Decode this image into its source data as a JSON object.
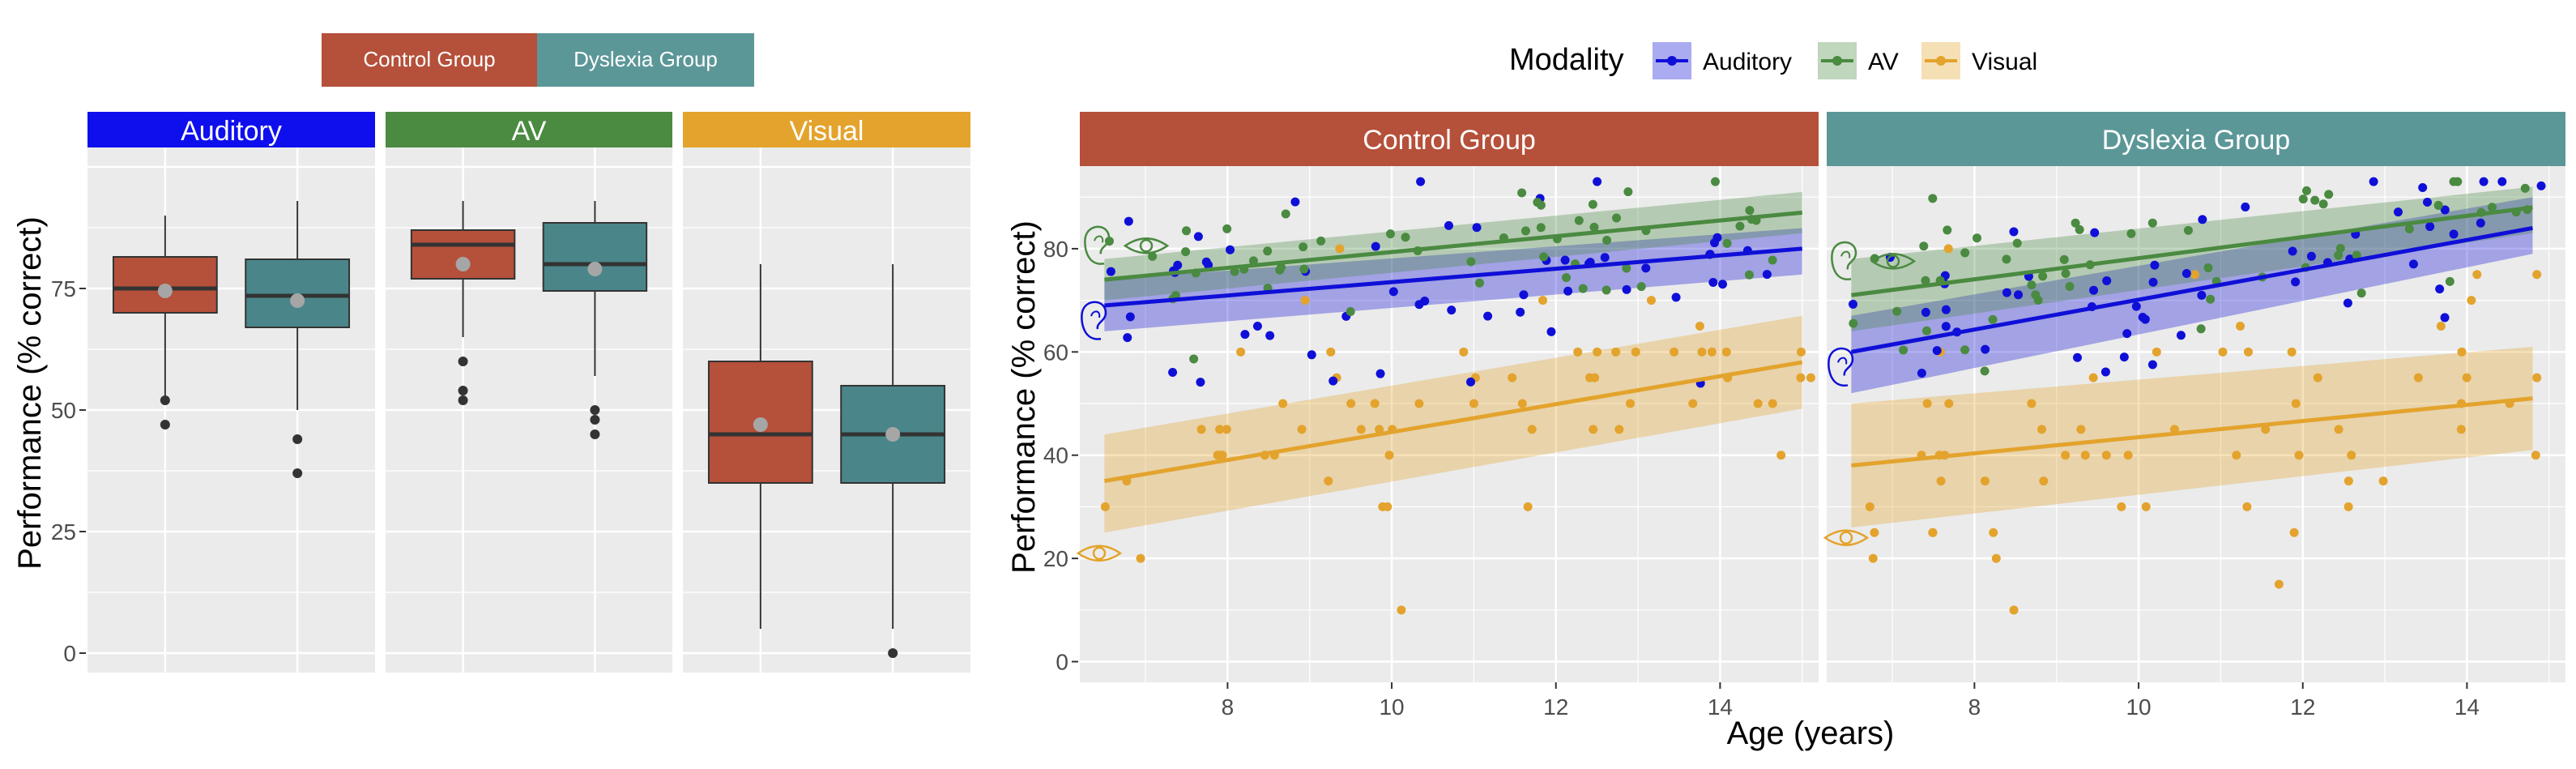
{
  "chart_data": [
    {
      "type": "box",
      "legend": [
        {
          "label": "Control Group",
          "color": "#b5503a"
        },
        {
          "label": "Dyslexia Group",
          "color": "#4a8689"
        }
      ],
      "ylabel": "Performance (% correct)",
      "ylim": [
        -4,
        104
      ],
      "yticks": [
        0,
        25,
        50,
        75
      ],
      "panels": [
        {
          "label": "Auditory",
          "strip_color": "#0f0fee",
          "boxes": [
            {
              "group": "Control Group",
              "q1": 70,
              "median": 75,
              "q3": 81.5,
              "whisker_low": 53,
              "whisker_high": 90,
              "mean": 74.5,
              "outliers": [
                52,
                47
              ]
            },
            {
              "group": "Dyslexia Group",
              "q1": 67,
              "median": 73.5,
              "q3": 81,
              "whisker_low": 50,
              "whisker_high": 93,
              "mean": 72.5,
              "outliers": [
                44,
                37
              ]
            }
          ]
        },
        {
          "label": "AV",
          "strip_color": "#4a8a41",
          "boxes": [
            {
              "group": "Control Group",
              "q1": 77,
              "median": 84,
              "q3": 87,
              "whisker_low": 65,
              "whisker_high": 93,
              "mean": 80,
              "outliers": [
                60,
                54,
                52
              ]
            },
            {
              "group": "Dyslexia Group",
              "q1": 74.5,
              "median": 80,
              "q3": 88.5,
              "whisker_low": 57,
              "whisker_high": 93,
              "mean": 79,
              "outliers": [
                50,
                48,
                45
              ]
            }
          ]
        },
        {
          "label": "Visual",
          "strip_color": "#e3a32c",
          "boxes": [
            {
              "group": "Control Group",
              "q1": 35,
              "median": 45,
              "q3": 60,
              "whisker_low": 5,
              "whisker_high": 80,
              "mean": 47,
              "outliers": []
            },
            {
              "group": "Dyslexia Group",
              "q1": 35,
              "median": 45,
              "q3": 55,
              "whisker_low": 5,
              "whisker_high": 80,
              "mean": 45,
              "outliers": [
                0
              ]
            }
          ]
        }
      ]
    },
    {
      "type": "scatter",
      "legend_title": "Modality",
      "series_legend": [
        {
          "name": "Auditory",
          "color": "#0f0fd8"
        },
        {
          "name": "AV",
          "color": "#4a8a41"
        },
        {
          "name": "Visual",
          "color": "#e3a32c"
        }
      ],
      "xlabel": "Age (years)",
      "ylabel": "Performance (% correct)",
      "xlim": [
        6.2,
        15.2
      ],
      "ylim": [
        -4,
        96
      ],
      "xticks": [
        8,
        10,
        12,
        14
      ],
      "yticks": [
        0,
        20,
        40,
        60,
        80
      ],
      "panels": [
        {
          "label": "Control Group",
          "strip_color": "#b5503a",
          "fits": [
            {
              "series": "AV",
              "x0": 6.5,
              "x1": 15.0,
              "y0": 74,
              "y1": 87,
              "lo0": 70,
              "hi0": 78,
              "lo1": 83,
              "hi1": 91
            },
            {
              "series": "Auditory",
              "x0": 6.5,
              "x1": 15.0,
              "y0": 69,
              "y1": 80,
              "lo0": 64,
              "hi0": 74,
              "lo1": 75,
              "hi1": 84
            },
            {
              "series": "Visual",
              "x0": 6.5,
              "x1": 15.0,
              "y0": 35,
              "y1": 58,
              "lo0": 25,
              "hi0": 44,
              "lo1": 49,
              "hi1": 67
            }
          ]
        },
        {
          "label": "Dyslexia Group",
          "strip_color": "#5c9798",
          "fits": [
            {
              "series": "AV",
              "x0": 6.5,
              "x1": 14.8,
              "y0": 71,
              "y1": 88,
              "lo0": 64,
              "hi0": 78,
              "lo1": 83,
              "hi1": 92
            },
            {
              "series": "Auditory",
              "x0": 6.5,
              "x1": 14.8,
              "y0": 60,
              "y1": 84,
              "lo0": 52,
              "hi0": 67,
              "lo1": 79,
              "hi1": 90
            },
            {
              "series": "Visual",
              "x0": 6.5,
              "x1": 14.8,
              "y0": 38,
              "y1": 51,
              "lo0": 26,
              "hi0": 50,
              "lo1": 41,
              "hi1": 61
            }
          ]
        }
      ]
    }
  ]
}
